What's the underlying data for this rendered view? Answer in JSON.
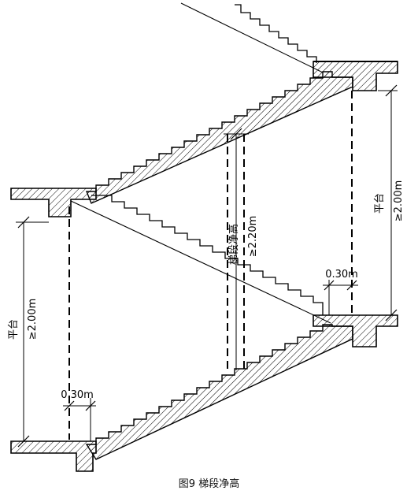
{
  "caption": "图9 梯段净高",
  "labels": {
    "platform": "平台",
    "platform_min": "≥2.00m",
    "flight": "梯段净高",
    "flight_min": "≥2.20m",
    "offset": "0.30m"
  }
}
